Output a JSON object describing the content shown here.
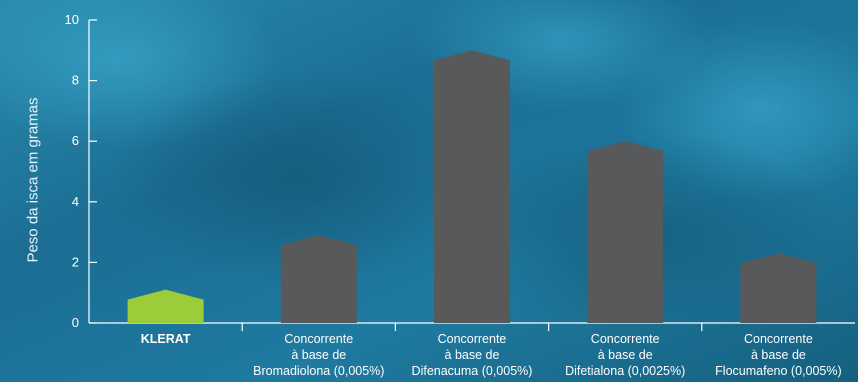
{
  "colors": {
    "bar_default": "#58595b",
    "bar_highlight": "#9ccc3a",
    "axis": "#ffffff",
    "text": "#ffffff",
    "background": "#1d6f95"
  },
  "chart_data": {
    "type": "bar",
    "ylabel": "Peso da isca em gramas",
    "ylim": [
      0,
      10
    ],
    "yticks": [
      0,
      2,
      4,
      6,
      8,
      10
    ],
    "grid": false,
    "legend": "none",
    "categories": [
      [
        "KLERAT"
      ],
      [
        "Concorrente",
        "à base de",
        "Bromadiolona (0,005%)"
      ],
      [
        "Concorrente",
        "à base de",
        "Difenacuma (0,005%)"
      ],
      [
        "Concorrente",
        "à base de",
        "Difetialona (0,0025%)"
      ],
      [
        "Concorrente",
        "à base de",
        "Flocumafeno (0,005%)"
      ]
    ],
    "values": [
      1.1,
      2.9,
      9.0,
      6.0,
      2.3
    ],
    "highlight_index": 0
  }
}
